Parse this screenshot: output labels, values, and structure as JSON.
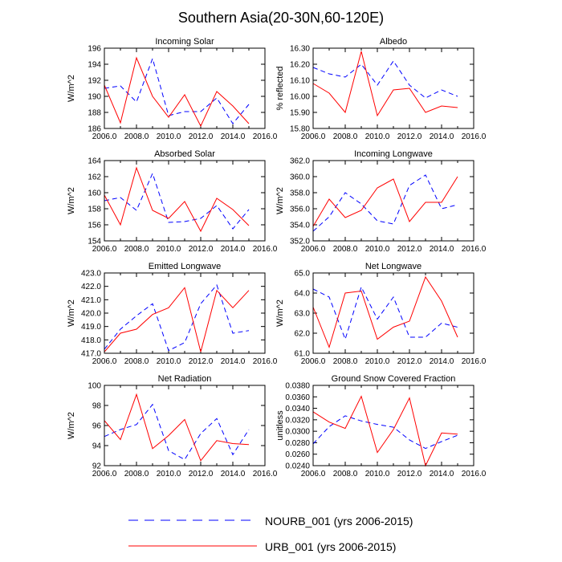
{
  "figure": {
    "title": "Southern Asia(20-30N,60-120E)"
  },
  "legend": [
    {
      "label": "NOURB_001 (yrs 2006-2015)",
      "color": "#0000ff",
      "dash": true
    },
    {
      "label": "URB_001 (yrs 2006-2015)",
      "color": "#ff0000",
      "dash": false
    }
  ],
  "colors": {
    "nourb": "#0000ff",
    "urb": "#ff0000"
  },
  "chart_data": [
    {
      "type": "line",
      "title": "Incoming Solar",
      "xlabel": "",
      "ylabel": "W/m^2",
      "xlim": [
        2006,
        2016
      ],
      "ylim": [
        186,
        196
      ],
      "xticks": [
        2006,
        2008,
        2010,
        2012,
        2014,
        2016
      ],
      "xtick_labels": [
        "2006.0",
        "2008.0",
        "2010.0",
        "2012.0",
        "2014.0",
        "2016.0"
      ],
      "yticks": [
        186,
        188,
        190,
        192,
        194,
        196
      ],
      "ytick_labels": [
        "186",
        "188",
        "190",
        "192",
        "194",
        "196"
      ],
      "x": [
        2006,
        2007,
        2008,
        2009,
        2010,
        2011,
        2012,
        2013,
        2014,
        2015
      ],
      "series": [
        {
          "name": "NOURB_001 (yrs 2006-2015)",
          "values": [
            191.0,
            191.3,
            189.3,
            194.7,
            187.6,
            188.1,
            188.1,
            189.8,
            186.6,
            189.0
          ]
        },
        {
          "name": "URB_001 (yrs 2006-2015)",
          "values": [
            191.4,
            186.7,
            194.8,
            190.0,
            187.4,
            190.2,
            186.3,
            190.6,
            188.8,
            186.6
          ]
        }
      ]
    },
    {
      "type": "line",
      "title": "Albedo",
      "xlabel": "",
      "ylabel": "% reflected",
      "xlim": [
        2006,
        2016
      ],
      "ylim": [
        15.8,
        16.3
      ],
      "xticks": [
        2006,
        2008,
        2010,
        2012,
        2014,
        2016
      ],
      "xtick_labels": [
        "2006.0",
        "2008.0",
        "2010.0",
        "2012.0",
        "2014.0",
        "2016.0"
      ],
      "yticks": [
        15.8,
        15.9,
        16.0,
        16.1,
        16.2,
        16.3
      ],
      "ytick_labels": [
        "15.80",
        "15.90",
        "16.00",
        "16.10",
        "16.20",
        "16.30"
      ],
      "x": [
        2006,
        2007,
        2008,
        2009,
        2010,
        2011,
        2012,
        2013,
        2014,
        2015
      ],
      "series": [
        {
          "name": "NOURB_001 (yrs 2006-2015)",
          "values": [
            16.18,
            16.14,
            16.12,
            16.2,
            16.07,
            16.22,
            16.07,
            15.99,
            16.04,
            16.0
          ]
        },
        {
          "name": "URB_001 (yrs 2006-2015)",
          "values": [
            16.08,
            16.02,
            15.9,
            16.28,
            15.88,
            16.04,
            16.05,
            15.9,
            15.94,
            15.93
          ]
        }
      ]
    },
    {
      "type": "line",
      "title": "Absorbed Solar",
      "xlabel": "",
      "ylabel": "W/m^2",
      "xlim": [
        2006,
        2016
      ],
      "ylim": [
        154,
        164
      ],
      "xticks": [
        2006,
        2008,
        2010,
        2012,
        2014,
        2016
      ],
      "xtick_labels": [
        "2006.0",
        "2008.0",
        "2010.0",
        "2012.0",
        "2014.0",
        "2016.0"
      ],
      "yticks": [
        154,
        156,
        158,
        160,
        162,
        164
      ],
      "ytick_labels": [
        "154",
        "156",
        "158",
        "160",
        "162",
        "164"
      ],
      "x": [
        2006,
        2007,
        2008,
        2009,
        2010,
        2011,
        2012,
        2013,
        2014,
        2015
      ],
      "series": [
        {
          "name": "NOURB_001 (yrs 2006-2015)",
          "values": [
            159.0,
            159.4,
            157.8,
            162.4,
            156.3,
            156.4,
            156.8,
            158.4,
            155.5,
            157.9
          ]
        },
        {
          "name": "URB_001 (yrs 2006-2015)",
          "values": [
            159.7,
            156.0,
            163.1,
            157.8,
            156.8,
            158.9,
            155.2,
            159.3,
            157.9,
            155.9
          ]
        }
      ]
    },
    {
      "type": "line",
      "title": "Incoming Longwave",
      "xlabel": "",
      "ylabel": "W/m^2",
      "xlim": [
        2006,
        2016
      ],
      "ylim": [
        352,
        362
      ],
      "xticks": [
        2006,
        2008,
        2010,
        2012,
        2014,
        2016
      ],
      "xtick_labels": [
        "2006.0",
        "2008.0",
        "2010.0",
        "2012.0",
        "2014.0",
        "2016.0"
      ],
      "yticks": [
        352,
        354,
        356,
        358,
        360,
        362
      ],
      "ytick_labels": [
        "352.0",
        "354.0",
        "356.0",
        "358.0",
        "360.0",
        "362.0"
      ],
      "x": [
        2006,
        2007,
        2008,
        2009,
        2010,
        2011,
        2012,
        2013,
        2014,
        2015
      ],
      "series": [
        {
          "name": "NOURB_001 (yrs 2006-2015)",
          "values": [
            353.2,
            355.0,
            358.0,
            356.6,
            354.5,
            354.1,
            358.9,
            360.2,
            356.0,
            356.5
          ]
        },
        {
          "name": "URB_001 (yrs 2006-2015)",
          "values": [
            353.8,
            357.2,
            354.9,
            355.8,
            358.6,
            359.7,
            354.4,
            356.8,
            356.8,
            360.0
          ]
        }
      ]
    },
    {
      "type": "line",
      "title": "Emitted Longwave",
      "xlabel": "",
      "ylabel": "W/m^2",
      "xlim": [
        2006,
        2016
      ],
      "ylim": [
        417,
        423
      ],
      "xticks": [
        2006,
        2008,
        2010,
        2012,
        2014,
        2016
      ],
      "xtick_labels": [
        "2006.0",
        "2008.0",
        "2010.0",
        "2012.0",
        "2014.0",
        "2016.0"
      ],
      "yticks": [
        417,
        418,
        419,
        420,
        421,
        422,
        423
      ],
      "ytick_labels": [
        "417.0",
        "418.0",
        "419.0",
        "420.0",
        "421.0",
        "422.0",
        "423.0"
      ],
      "x": [
        2006,
        2007,
        2008,
        2009,
        2010,
        2011,
        2012,
        2013,
        2014,
        2015
      ],
      "series": [
        {
          "name": "NOURB_001 (yrs 2006-2015)",
          "values": [
            417.3,
            418.8,
            419.8,
            420.7,
            417.2,
            417.8,
            420.7,
            422.1,
            418.5,
            418.7
          ]
        },
        {
          "name": "URB_001 (yrs 2006-2015)",
          "values": [
            417.1,
            418.5,
            418.8,
            419.9,
            420.4,
            421.9,
            417.1,
            421.7,
            420.4,
            421.7
          ]
        }
      ]
    },
    {
      "type": "line",
      "title": "Net Longwave",
      "xlabel": "",
      "ylabel": "W/m^2",
      "xlim": [
        2006,
        2016
      ],
      "ylim": [
        61,
        65
      ],
      "xticks": [
        2006,
        2008,
        2010,
        2012,
        2014,
        2016
      ],
      "xtick_labels": [
        "2006.0",
        "2008.0",
        "2010.0",
        "2012.0",
        "2014.0",
        "2016.0"
      ],
      "yticks": [
        61,
        62,
        63,
        64,
        65
      ],
      "ytick_labels": [
        "61.0",
        "62.0",
        "63.0",
        "64.0",
        "65.0"
      ],
      "x": [
        2006,
        2007,
        2008,
        2009,
        2010,
        2011,
        2012,
        2013,
        2014,
        2015
      ],
      "series": [
        {
          "name": "NOURB_001 (yrs 2006-2015)",
          "values": [
            64.2,
            63.8,
            61.7,
            64.3,
            62.7,
            63.8,
            61.8,
            61.8,
            62.5,
            62.3
          ]
        },
        {
          "name": "URB_001 (yrs 2006-2015)",
          "values": [
            63.3,
            61.3,
            64.0,
            64.1,
            61.7,
            62.3,
            62.6,
            64.8,
            63.6,
            61.8
          ]
        }
      ]
    },
    {
      "type": "line",
      "title": "Net Radiation",
      "xlabel": "",
      "ylabel": "W/m^2",
      "xlim": [
        2006,
        2016
      ],
      "ylim": [
        92,
        100
      ],
      "xticks": [
        2006,
        2008,
        2010,
        2012,
        2014,
        2016
      ],
      "xtick_labels": [
        "2006.0",
        "2008.0",
        "2010.0",
        "2012.0",
        "2014.0",
        "2016.0"
      ],
      "yticks": [
        92,
        94,
        96,
        98,
        100
      ],
      "ytick_labels": [
        "92",
        "94",
        "96",
        "98",
        "100"
      ],
      "x": [
        2006,
        2007,
        2008,
        2009,
        2010,
        2011,
        2012,
        2013,
        2014,
        2015
      ],
      "series": [
        {
          "name": "NOURB_001 (yrs 2006-2015)",
          "values": [
            94.9,
            95.6,
            96.1,
            98.1,
            93.5,
            92.6,
            95.2,
            96.7,
            93.1,
            95.6
          ]
        },
        {
          "name": "URB_001 (yrs 2006-2015)",
          "values": [
            96.5,
            94.6,
            99.1,
            93.7,
            95.0,
            96.6,
            92.5,
            94.5,
            94.2,
            94.1
          ]
        }
      ]
    },
    {
      "type": "line",
      "title": "Ground Snow Covered Fraction",
      "xlabel": "",
      "ylabel": "unitless",
      "xlim": [
        2006,
        2016
      ],
      "ylim": [
        0.024,
        0.038
      ],
      "xticks": [
        2006,
        2008,
        2010,
        2012,
        2014,
        2016
      ],
      "xtick_labels": [
        "2006.0",
        "2008.0",
        "2010.0",
        "2012.0",
        "2014.0",
        "2016.0"
      ],
      "yticks": [
        0.024,
        0.026,
        0.028,
        0.03,
        0.032,
        0.034,
        0.036,
        0.038
      ],
      "ytick_labels": [
        "0.0240",
        "0.0260",
        "0.0280",
        "0.0300",
        "0.0320",
        "0.0340",
        "0.0360",
        "0.0380"
      ],
      "x": [
        2006,
        2007,
        2008,
        2009,
        2010,
        2011,
        2012,
        2013,
        2014,
        2015
      ],
      "series": [
        {
          "name": "NOURB_001 (yrs 2006-2015)",
          "values": [
            0.0278,
            0.0308,
            0.0327,
            0.0318,
            0.0312,
            0.0307,
            0.0285,
            0.027,
            0.0282,
            0.0293
          ]
        },
        {
          "name": "URB_001 (yrs 2006-2015)",
          "values": [
            0.0334,
            0.0316,
            0.0305,
            0.0361,
            0.0263,
            0.0303,
            0.0358,
            0.024,
            0.0297,
            0.0295
          ]
        }
      ]
    }
  ]
}
